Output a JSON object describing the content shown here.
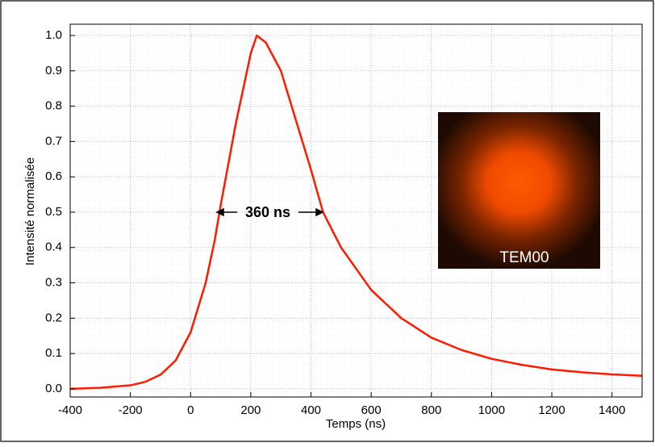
{
  "chart_data": {
    "type": "line",
    "x_label": "Temps (ns)",
    "y_label": "Intensité normalisée",
    "annotations": [
      "360 ns",
      "TEM00"
    ],
    "x": [
      -400,
      -300,
      -200,
      -150,
      -100,
      -50,
      0,
      50,
      80,
      100,
      150,
      200,
      220,
      250,
      300,
      350,
      400,
      440,
      500,
      600,
      700,
      800,
      900,
      1000,
      1100,
      1200,
      1300,
      1400,
      1500
    ],
    "series": [
      {
        "name": "Intensité",
        "color": "#ff1a00",
        "values": [
          0.0,
          0.003,
          0.01,
          0.02,
          0.04,
          0.08,
          0.16,
          0.3,
          0.42,
          0.52,
          0.75,
          0.95,
          1.0,
          0.98,
          0.9,
          0.76,
          0.62,
          0.5,
          0.4,
          0.28,
          0.2,
          0.145,
          0.11,
          0.085,
          0.068,
          0.055,
          0.047,
          0.041,
          0.037
        ]
      }
    ],
    "xlim": [
      -400,
      1500
    ],
    "ylim": [
      -0.023,
      1.032
    ],
    "xticks": [
      -400,
      -200,
      0,
      200,
      400,
      600,
      800,
      1000,
      1200,
      1400
    ],
    "yticks": [
      {
        "value": 0,
        "label": "0.0"
      },
      0.1,
      0.2,
      0.3,
      0.4,
      0.5,
      0.6,
      0.7,
      0.8,
      0.9,
      {
        "value": 1,
        "label": "1.0"
      }
    ],
    "grid": true
  }
}
